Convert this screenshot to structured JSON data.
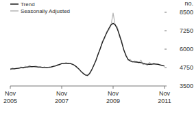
{
  "chart_data": {
    "type": "line",
    "categories": [
      "Nov 2005",
      null,
      null,
      null,
      null,
      null,
      null,
      null,
      null,
      null,
      null,
      null,
      null,
      null,
      null,
      null,
      null,
      null,
      null,
      null,
      null,
      null,
      null,
      null,
      "Nov 2007",
      null,
      null,
      null,
      null,
      null,
      null,
      null,
      null,
      null,
      null,
      null,
      null,
      null,
      null,
      null,
      null,
      null,
      null,
      null,
      null,
      null,
      null,
      null,
      "Nov 2009",
      null,
      null,
      null,
      null,
      null,
      null,
      null,
      null,
      null,
      null,
      null,
      null,
      null,
      null,
      null,
      null,
      null,
      null,
      null,
      null,
      null,
      null,
      null,
      "Nov 2011"
    ],
    "series": [
      {
        "name": "Trend",
        "color": "#1a1a1a",
        "values": [
          4650,
          4660,
          4670,
          4690,
          4710,
          4730,
          4750,
          4770,
          4790,
          4800,
          4810,
          4810,
          4800,
          4790,
          4780,
          4770,
          4760,
          4760,
          4770,
          4790,
          4820,
          4860,
          4910,
          4960,
          5010,
          5030,
          5040,
          5040,
          5020,
          4980,
          4900,
          4790,
          4650,
          4500,
          4350,
          4250,
          4220,
          4350,
          4600,
          4900,
          5250,
          5650,
          6050,
          6450,
          6800,
          7100,
          7400,
          7650,
          7750,
          7650,
          7350,
          6950,
          6450,
          5950,
          5550,
          5300,
          5200,
          5150,
          5130,
          5120,
          5100,
          5080,
          5050,
          5000,
          4980,
          4970,
          4980,
          5000,
          4990,
          4960,
          4930,
          4890,
          4850
        ]
      },
      {
        "name": "Seasonally Adjusted",
        "color": "#b4b4b4",
        "values": [
          4600,
          4720,
          4650,
          4700,
          4680,
          4800,
          4700,
          4850,
          4750,
          4900,
          4780,
          4830,
          4850,
          4750,
          4820,
          4740,
          4800,
          4730,
          4780,
          4760,
          4850,
          4840,
          4950,
          4920,
          5050,
          5000,
          5080,
          5020,
          5050,
          4950,
          4920,
          4750,
          4680,
          4450,
          4400,
          4250,
          4180,
          4300,
          4550,
          4950,
          5200,
          5700,
          6000,
          6550,
          6700,
          7200,
          7300,
          7600,
          8450,
          7600,
          7500,
          6800,
          6600,
          5900,
          5650,
          5250,
          5300,
          5100,
          5200,
          5150,
          5050,
          5250,
          4950,
          5000,
          4900,
          5100,
          4950,
          5050,
          4950,
          5000,
          4900,
          4880,
          4850
        ]
      }
    ],
    "y_label": "no.",
    "ylim": [
      3500,
      8500
    ],
    "yticks": [
      3500,
      4750,
      6000,
      7250,
      8500
    ],
    "legend": "top-left",
    "grid": false
  }
}
